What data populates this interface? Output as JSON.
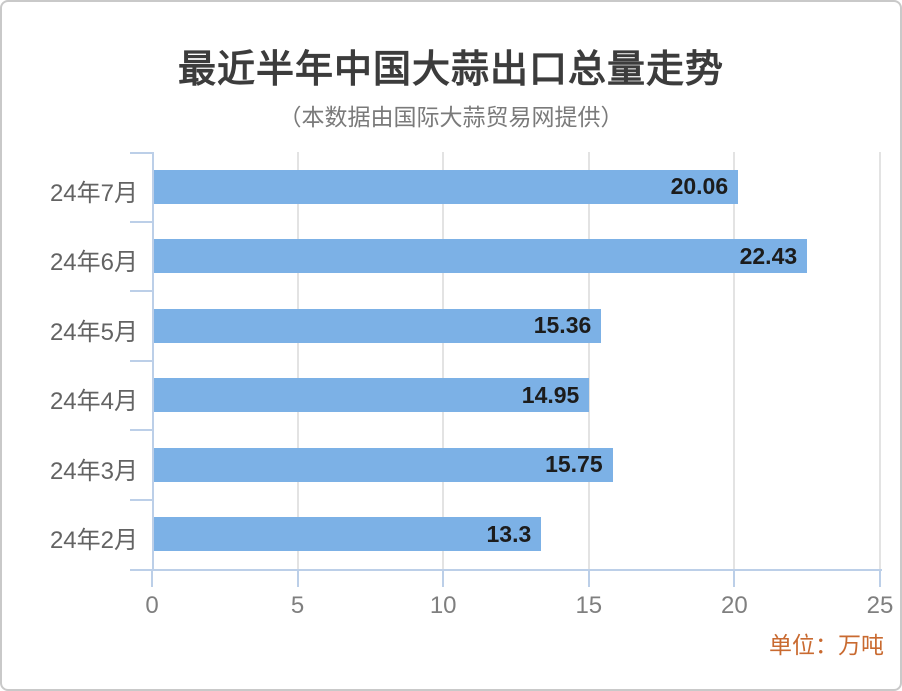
{
  "chart_data": {
    "type": "bar",
    "orientation": "horizontal",
    "title": "最近半年中国大蒜出口总量走势",
    "subtitle": "（本数据由国际大蒜贸易网提供）",
    "categories": [
      "24年7月",
      "24年6月",
      "24年5月",
      "24年4月",
      "24年3月",
      "24年2月"
    ],
    "values": [
      20.06,
      22.43,
      15.36,
      14.95,
      15.75,
      13.3
    ],
    "value_labels": [
      "20.06",
      "22.43",
      "15.36",
      "14.95",
      "15.75",
      "13.3"
    ],
    "xlabel": "",
    "ylabel": "",
    "xlim": [
      0,
      25
    ],
    "x_ticks": [
      0,
      5,
      10,
      15,
      20,
      25
    ],
    "grid": true,
    "legend": false,
    "unit_label": "单位：万吨",
    "colors": {
      "bar": "#7CB1E6",
      "axis_line": "#BCCFE8",
      "gridline": "#E3E3E3",
      "tick_label": "#7F7F7F",
      "category_label": "#636363",
      "value_label": "#1C1C1C",
      "title": "#3C3C3C",
      "subtitle": "#7A7A7A",
      "unit": "#C96A30"
    }
  }
}
